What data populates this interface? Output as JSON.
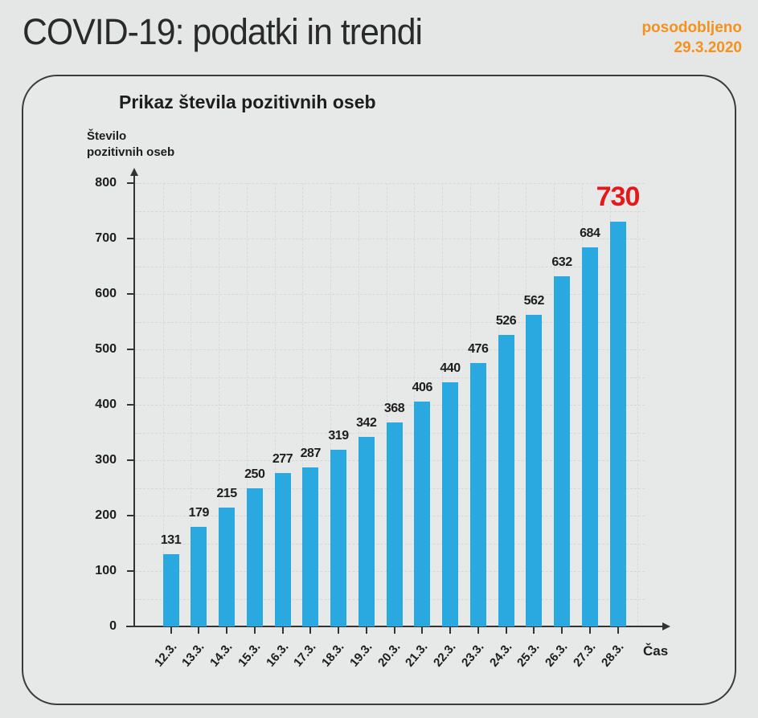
{
  "header": {
    "title": "COVID-19: podatki in trendi",
    "updated_label": "posodobljeno",
    "updated_date": "29.3.2020",
    "accent_color": "#f5921e"
  },
  "chart_data": {
    "type": "bar",
    "title": "Prikaz števila pozitivnih oseb",
    "ylabel_line1": "Število",
    "ylabel_line2": "pozitivnih oseb",
    "xlabel": "Čas",
    "categories": [
      "12.3.",
      "13.3.",
      "14.3.",
      "15.3.",
      "16.3.",
      "17.3.",
      "18.3.",
      "19.3.",
      "20.3.",
      "21.3.",
      "22.3.",
      "23.3.",
      "24.3.",
      "25.3.",
      "26.3.",
      "27.3.",
      "28.3."
    ],
    "values": [
      131,
      179,
      215,
      250,
      277,
      287,
      319,
      342,
      368,
      406,
      440,
      476,
      526,
      562,
      632,
      684,
      730
    ],
    "ylim": [
      0,
      800
    ],
    "ytick_step": 100,
    "grid": true,
    "legend": "none",
    "bar_color": "#2aa8e0",
    "axis_color": "#333333",
    "value_label_color": "#1d1d1d",
    "highlight_last": true,
    "highlight_color": "#e3191c"
  }
}
